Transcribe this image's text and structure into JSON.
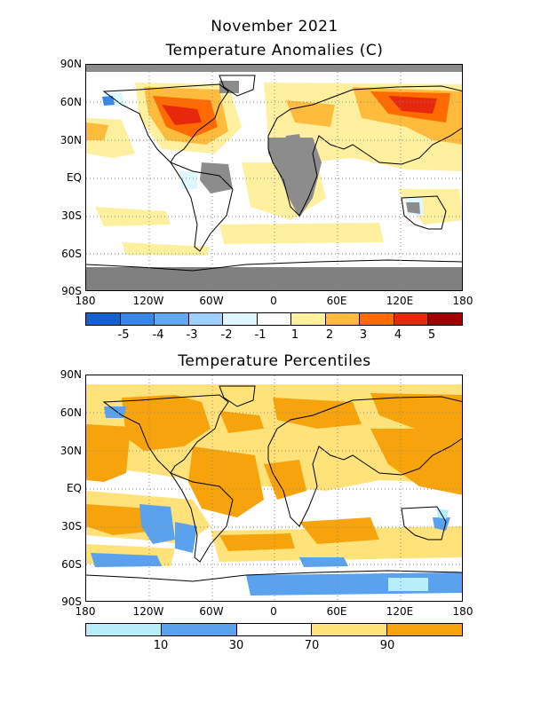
{
  "title": "November 2021",
  "panel1": {
    "title": "Temperature Anomalies (C)",
    "lat_labels": [
      "90N",
      "60N",
      "30N",
      "EQ",
      "30S",
      "60S",
      "90S"
    ],
    "lon_labels": [
      "180",
      "120W",
      "60W",
      "0",
      "60E",
      "120E",
      "180"
    ],
    "colorbar_labels": [
      "-5",
      "-4",
      "-3",
      "-2",
      "-1",
      "1",
      "2",
      "3",
      "4",
      "5"
    ],
    "colorbar_colors": [
      "#1560cf",
      "#3a86e6",
      "#62a8f0",
      "#9dd0fa",
      "#dff7ff",
      "#ffffff",
      "#fff0a0",
      "#ffbb3c",
      "#ff6b00",
      "#e8280c",
      "#a00000"
    ]
  },
  "panel2": {
    "title": "Temperature Percentiles",
    "lat_labels": [
      "90N",
      "60N",
      "30N",
      "EQ",
      "30S",
      "60S",
      "90S"
    ],
    "lon_labels": [
      "180",
      "120W",
      "60W",
      "0",
      "60E",
      "120E",
      "180"
    ],
    "colorbar_labels": [
      "10",
      "30",
      "70",
      "90"
    ],
    "colorbar_colors": [
      "#b7eefa",
      "#5aa2ee",
      "#ffffff",
      "#ffe27a",
      "#f7a30c"
    ]
  }
}
